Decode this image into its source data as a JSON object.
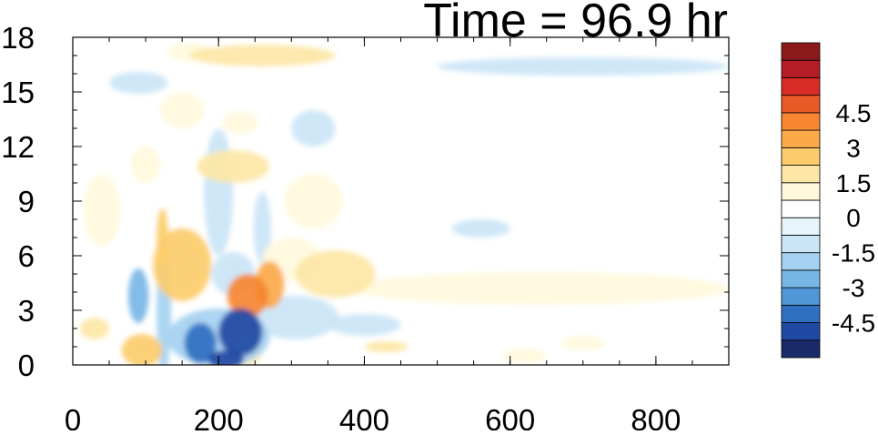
{
  "chart_data": {
    "type": "heatmap",
    "title": "Time = 96.9 hr",
    "xlabel": "",
    "ylabel": "",
    "xlim": [
      0,
      900
    ],
    "ylim": [
      0,
      18
    ],
    "x_ticks": [
      "0",
      "200",
      "400",
      "600",
      "800"
    ],
    "x_tick_values": [
      0,
      200,
      400,
      600,
      800
    ],
    "y_ticks": [
      "0",
      "3",
      "6",
      "9",
      "12",
      "15",
      "18"
    ],
    "y_tick_values": [
      0,
      3,
      6,
      9,
      12,
      15,
      18
    ],
    "colorbar": {
      "levels": [
        -5.25,
        -4.5,
        -3.75,
        -3,
        -2.25,
        -1.5,
        -0.75,
        0,
        0.75,
        1.5,
        2.25,
        3,
        3.75,
        4.5,
        5.25
      ],
      "labels": [
        "-4.5",
        "-3",
        "-1.5",
        "0",
        "1.5",
        "3",
        "4.5"
      ],
      "label_values": [
        -4.5,
        -3,
        -1.5,
        0,
        1.5,
        3,
        4.5
      ],
      "colors": [
        "#1a2a68",
        "#1f49a3",
        "#2f70c0",
        "#4f97d6",
        "#78b6e6",
        "#a4d1f1",
        "#cae5f6",
        "#e8f4fb",
        "#ffffff",
        "#fff8dc",
        "#fde7a6",
        "#fccc6b",
        "#fba94a",
        "#f6862f",
        "#ea5a27",
        "#d92b27",
        "#b51d26",
        "#8c1a1c"
      ]
    },
    "features": [
      {
        "x": 230,
        "y": 1.8,
        "rx": 30,
        "ry": 1.3,
        "value": -4.6
      },
      {
        "x": 175,
        "y": 1.2,
        "rx": 22,
        "ry": 1.1,
        "value": -4.2
      },
      {
        "x": 210,
        "y": 0.3,
        "rx": 25,
        "ry": 0.5,
        "value": -4.6
      },
      {
        "x": 200,
        "y": 1.5,
        "rx": 70,
        "ry": 1.6,
        "value": -2.0
      },
      {
        "x": 90,
        "y": 3.8,
        "rx": 14,
        "ry": 1.5,
        "value": -2.8
      },
      {
        "x": 125,
        "y": 3.0,
        "rx": 10,
        "ry": 3.5,
        "value": -1.6
      },
      {
        "x": 305,
        "y": 2.6,
        "rx": 60,
        "ry": 1.2,
        "value": -0.8
      },
      {
        "x": 200,
        "y": 9.5,
        "rx": 20,
        "ry": 3.5,
        "value": -0.9
      },
      {
        "x": 90,
        "y": 15.5,
        "rx": 40,
        "ry": 0.6,
        "value": -0.8
      },
      {
        "x": 700,
        "y": 16.4,
        "rx": 200,
        "ry": 0.5,
        "value": -0.8
      },
      {
        "x": 330,
        "y": 13.0,
        "rx": 30,
        "ry": 1.0,
        "value": -0.8
      },
      {
        "x": 560,
        "y": 7.5,
        "rx": 40,
        "ry": 0.5,
        "value": -0.8
      },
      {
        "x": 220,
        "y": 5.0,
        "rx": 30,
        "ry": 1.2,
        "value": -1.0
      },
      {
        "x": 260,
        "y": 7.5,
        "rx": 12,
        "ry": 2.0,
        "value": -1.0
      },
      {
        "x": 400,
        "y": 2.2,
        "rx": 50,
        "ry": 0.6,
        "value": -0.8
      },
      {
        "x": 240,
        "y": 3.8,
        "rx": 28,
        "ry": 1.2,
        "value": 3.8
      },
      {
        "x": 270,
        "y": 4.4,
        "rx": 20,
        "ry": 1.3,
        "value": 3.0
      },
      {
        "x": 150,
        "y": 5.5,
        "rx": 40,
        "ry": 2.0,
        "value": 2.4
      },
      {
        "x": 123,
        "y": 7.0,
        "rx": 8,
        "ry": 1.6,
        "value": 2.4
      },
      {
        "x": 95,
        "y": 0.8,
        "rx": 28,
        "ry": 0.9,
        "value": 2.4
      },
      {
        "x": 240,
        "y": 0.8,
        "rx": 20,
        "ry": 0.8,
        "value": 1.6
      },
      {
        "x": 30,
        "y": 2.0,
        "rx": 20,
        "ry": 0.6,
        "value": 1.6
      },
      {
        "x": 360,
        "y": 5.0,
        "rx": 55,
        "ry": 1.3,
        "value": 1.6
      },
      {
        "x": 300,
        "y": 5.8,
        "rx": 40,
        "ry": 1.2,
        "value": 1.2
      },
      {
        "x": 640,
        "y": 4.2,
        "rx": 260,
        "ry": 0.9,
        "value": 0.8
      },
      {
        "x": 220,
        "y": 10.9,
        "rx": 50,
        "ry": 0.9,
        "value": 1.6
      },
      {
        "x": 260,
        "y": 17.0,
        "rx": 100,
        "ry": 0.6,
        "value": 1.6
      },
      {
        "x": 160,
        "y": 17.2,
        "rx": 30,
        "ry": 0.5,
        "value": 1.2
      },
      {
        "x": 150,
        "y": 14.0,
        "rx": 30,
        "ry": 1.0,
        "value": 0.9
      },
      {
        "x": 230,
        "y": 13.3,
        "rx": 25,
        "ry": 0.6,
        "value": 1.0
      },
      {
        "x": 430,
        "y": 1.0,
        "rx": 30,
        "ry": 0.3,
        "value": 1.6
      },
      {
        "x": 620,
        "y": 0.5,
        "rx": 30,
        "ry": 0.4,
        "value": 0.9
      },
      {
        "x": 700,
        "y": 1.2,
        "rx": 30,
        "ry": 0.4,
        "value": 0.9
      },
      {
        "x": 40,
        "y": 8.5,
        "rx": 25,
        "ry": 2.0,
        "value": 0.9
      },
      {
        "x": 330,
        "y": 9.0,
        "rx": 40,
        "ry": 1.5,
        "value": 0.9
      },
      {
        "x": 100,
        "y": 11.0,
        "rx": 20,
        "ry": 1.0,
        "value": 0.9
      }
    ]
  }
}
